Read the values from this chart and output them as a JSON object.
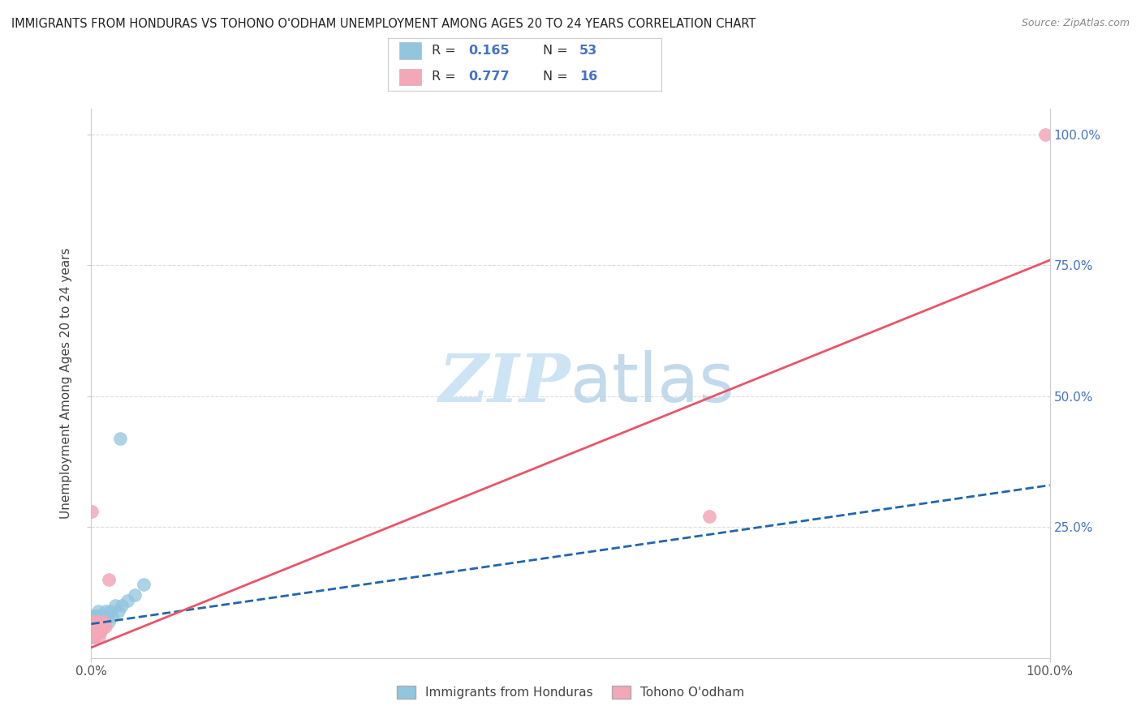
{
  "title": "IMMIGRANTS FROM HONDURAS VS TOHONO O'ODHAM UNEMPLOYMENT AMONG AGES 20 TO 24 YEARS CORRELATION CHART",
  "source": "Source: ZipAtlas.com",
  "ylabel": "Unemployment Among Ages 20 to 24 years",
  "xmin": 0.0,
  "xmax": 1.0,
  "ymin": 0.0,
  "ymax": 1.05,
  "legend_label_blue": "Immigrants from Honduras",
  "legend_label_pink": "Tohono O'odham",
  "blue_R": "0.165",
  "blue_N": "53",
  "pink_R": "0.777",
  "pink_N": "16",
  "blue_color": "#92c5de",
  "pink_color": "#f4a7b9",
  "line_blue_color": "#2166ac",
  "line_pink_color": "#e8556a",
  "watermark_color": "#cde4f5",
  "background_color": "#ffffff",
  "grid_color": "#dddddd",
  "blue_scatter_x": [
    0.0002,
    0.0004,
    0.0006,
    0.0008,
    0.001,
    0.001,
    0.0012,
    0.0013,
    0.0015,
    0.0015,
    0.002,
    0.002,
    0.002,
    0.0022,
    0.0025,
    0.003,
    0.003,
    0.0032,
    0.0035,
    0.004,
    0.004,
    0.004,
    0.0045,
    0.005,
    0.005,
    0.005,
    0.006,
    0.006,
    0.006,
    0.007,
    0.007,
    0.007,
    0.008,
    0.008,
    0.009,
    0.009,
    0.01,
    0.011,
    0.012,
    0.013,
    0.014,
    0.015,
    0.016,
    0.018,
    0.02,
    0.022,
    0.025,
    0.028,
    0.032,
    0.038,
    0.045,
    0.055,
    0.03
  ],
  "blue_scatter_y": [
    0.04,
    0.05,
    0.06,
    0.04,
    0.05,
    0.07,
    0.06,
    0.05,
    0.08,
    0.05,
    0.06,
    0.07,
    0.04,
    0.06,
    0.07,
    0.05,
    0.08,
    0.06,
    0.07,
    0.05,
    0.08,
    0.06,
    0.07,
    0.06,
    0.08,
    0.05,
    0.07,
    0.06,
    0.08,
    0.07,
    0.05,
    0.09,
    0.06,
    0.08,
    0.07,
    0.05,
    0.08,
    0.07,
    0.06,
    0.08,
    0.07,
    0.09,
    0.08,
    0.07,
    0.09,
    0.08,
    0.1,
    0.09,
    0.1,
    0.11,
    0.12,
    0.14,
    0.42
  ],
  "pink_scatter_x": [
    0.0004,
    0.001,
    0.002,
    0.003,
    0.004,
    0.005,
    0.006,
    0.007,
    0.008,
    0.009,
    0.01,
    0.012,
    0.015,
    0.018,
    0.645,
    0.995
  ],
  "pink_scatter_y": [
    0.28,
    0.05,
    0.07,
    0.04,
    0.06,
    0.05,
    0.07,
    0.06,
    0.04,
    0.06,
    0.05,
    0.07,
    0.06,
    0.15,
    0.27,
    1.0
  ],
  "blue_trend_start_x": 0.0,
  "blue_trend_start_y": 0.065,
  "blue_trend_end_x": 1.0,
  "blue_trend_end_y": 0.33,
  "pink_trend_start_x": 0.0,
  "pink_trend_start_y": 0.02,
  "pink_trend_end_x": 1.0,
  "pink_trend_end_y": 0.76
}
